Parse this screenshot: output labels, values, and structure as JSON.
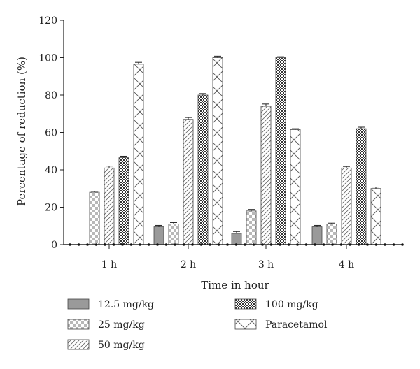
{
  "chart_data": {
    "type": "bar",
    "categories": [
      "1 h",
      "2 h",
      "3 h",
      "4 h"
    ],
    "xlabel": "Time in hour",
    "ylabel": "Percentage of reduction (%)",
    "ylim": [
      0,
      120
    ],
    "yticks": [
      0,
      20,
      40,
      60,
      80,
      100,
      120
    ],
    "grid": false,
    "legend_position": "bottom",
    "series": [
      {
        "name": "12.5 mg/kg",
        "pattern": "solid-gray",
        "values": [
          0,
          9.5,
          6,
          9.5
        ],
        "errors": [
          0,
          0.8,
          1,
          0.8
        ]
      },
      {
        "name": "25 mg/kg",
        "pattern": "checker",
        "values": [
          28,
          11,
          18,
          11
        ],
        "errors": [
          0.5,
          0.8,
          0.8,
          0.5
        ]
      },
      {
        "name": "50 mg/kg",
        "pattern": "diagonal",
        "values": [
          41,
          67,
          74,
          41
        ],
        "errors": [
          1,
          1,
          1.2,
          0.8
        ]
      },
      {
        "name": "100 mg/kg",
        "pattern": "dense-checker",
        "values": [
          46.5,
          80,
          100,
          62
        ],
        "errors": [
          0.8,
          0.8,
          0.5,
          0.8
        ]
      },
      {
        "name": "Paracetamol",
        "pattern": "cross-hatch",
        "values": [
          96.5,
          100,
          61.5,
          30
        ],
        "errors": [
          1,
          0.8,
          0.5,
          0.8
        ]
      }
    ],
    "colors": {
      "axis": "#222222",
      "gray_fill": "#9a9a9a",
      "pattern_stroke": "#555555"
    }
  }
}
